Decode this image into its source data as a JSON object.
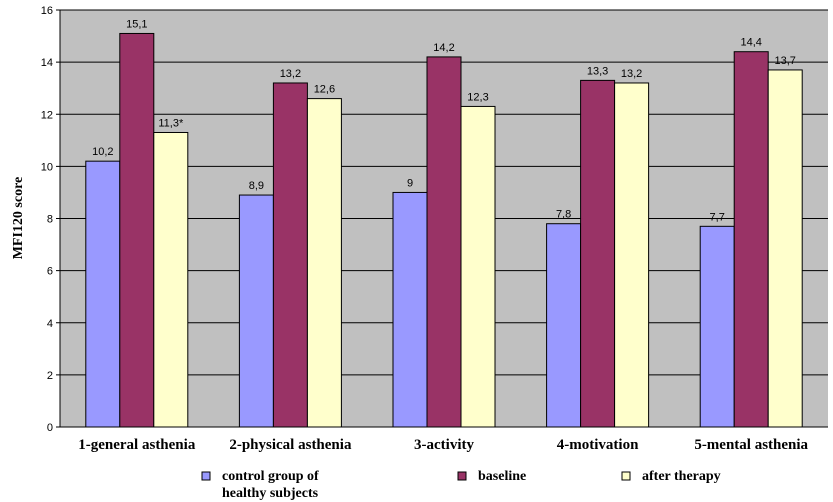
{
  "chart_data": {
    "type": "bar",
    "title": "",
    "xlabel": "",
    "ylabel": "MFI120 score",
    "ylim": [
      0,
      16
    ],
    "y_ticks": [
      "0",
      "2",
      "4",
      "6",
      "8",
      "10",
      "12",
      "14",
      "16"
    ],
    "categories": [
      "1-general asthenia",
      "2-physical asthenia",
      "3-activity",
      "4-motivation",
      "5-mental asthenia"
    ],
    "series": [
      {
        "name": "control group of healthy subjects",
        "name_lines": [
          "control group of",
          "healthy subjects"
        ],
        "color": "#9999ff",
        "values": [
          10.2,
          8.9,
          9,
          7.8,
          7.7
        ],
        "labels": [
          "10,2",
          "8,9",
          "9",
          "7,8",
          "7,7"
        ]
      },
      {
        "name": "baseline",
        "name_lines": [
          "baseline"
        ],
        "color": "#993366",
        "values": [
          15.1,
          13.2,
          14.2,
          13.3,
          14.4
        ],
        "labels": [
          "15,1",
          "13,2",
          "14,2",
          "13,3",
          "14,4"
        ]
      },
      {
        "name": "after therapy",
        "name_lines": [
          "after therapy"
        ],
        "color": "#ffffcc",
        "values": [
          11.3,
          12.6,
          12.3,
          13.2,
          13.7
        ],
        "labels": [
          "11,3*",
          "12,6",
          "12,3",
          "13,2",
          "13,7"
        ]
      }
    ],
    "grid": true,
    "plot_background": "#c0c0c0",
    "legend_position": "bottom"
  }
}
